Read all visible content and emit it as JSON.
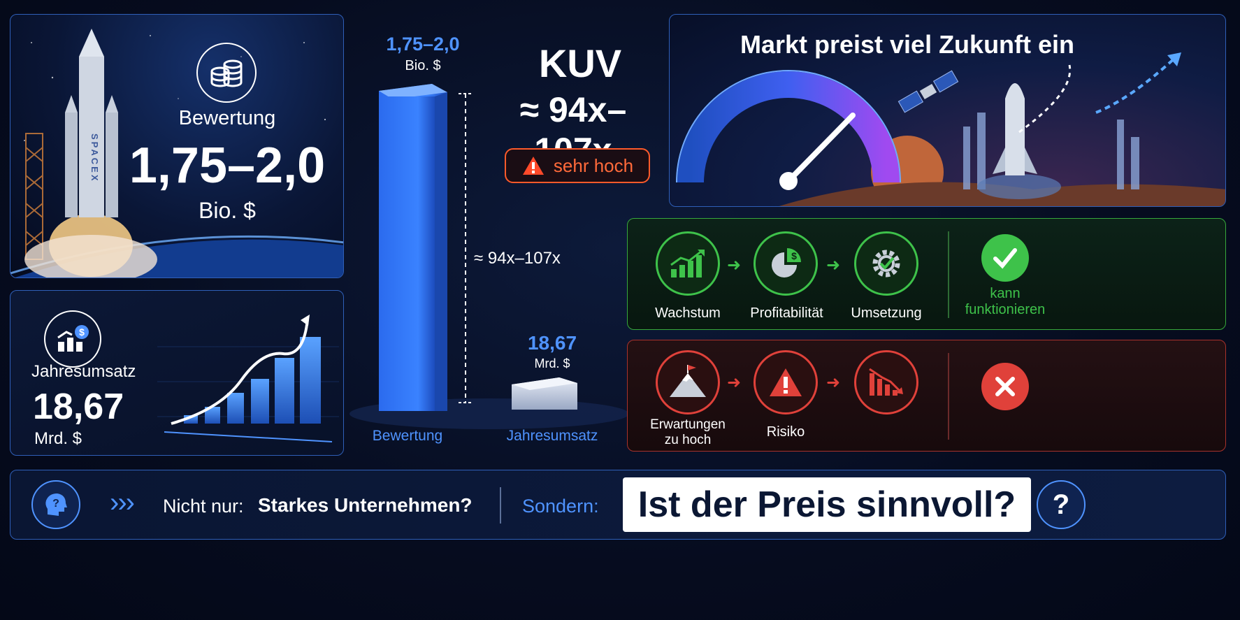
{
  "valuation_panel": {
    "label": "Bewertung",
    "value": "1,75–2,0",
    "unit": "Bio. $",
    "rocket_text": "SPACEX"
  },
  "revenue_panel": {
    "label": "Jahresumsatz",
    "value": "18,67",
    "unit": "Mrd. $"
  },
  "center_chart": {
    "bar_big_value": "1,75–2,0",
    "bar_big_unit": "Bio. $",
    "bar_small_value": "18,67",
    "bar_small_unit": "Mrd. $",
    "bracket_label": "≈ 94x–107x",
    "x_labels": [
      "Bewertung",
      "Jahresumsatz"
    ]
  },
  "kuv": {
    "title": "KUV",
    "value": "≈ 94x–107x",
    "warning": "sehr hoch"
  },
  "market_panel": {
    "title": "Markt preist viel Zukunft ein"
  },
  "success_row": {
    "steps": [
      "Wachstum",
      "Profitabilität",
      "Umsetzung"
    ],
    "result": "kann\nfunktionieren"
  },
  "risk_row": {
    "steps": [
      "Erwartungen\nzu hoch",
      "Risiko"
    ]
  },
  "bottom_bar": {
    "chevrons": "›››",
    "text_prefix": "Nicht nur:",
    "text_bold": "Starkes Unternehmen?",
    "sondern": "Sondern:",
    "question": "Ist der Preis sinnvoll?",
    "qmark": "?"
  },
  "colors": {
    "accent_blue": "#4f93ff",
    "success_green": "#3ec24a",
    "risk_red": "#e0413a",
    "warning_orange": "#ff5a2a"
  }
}
